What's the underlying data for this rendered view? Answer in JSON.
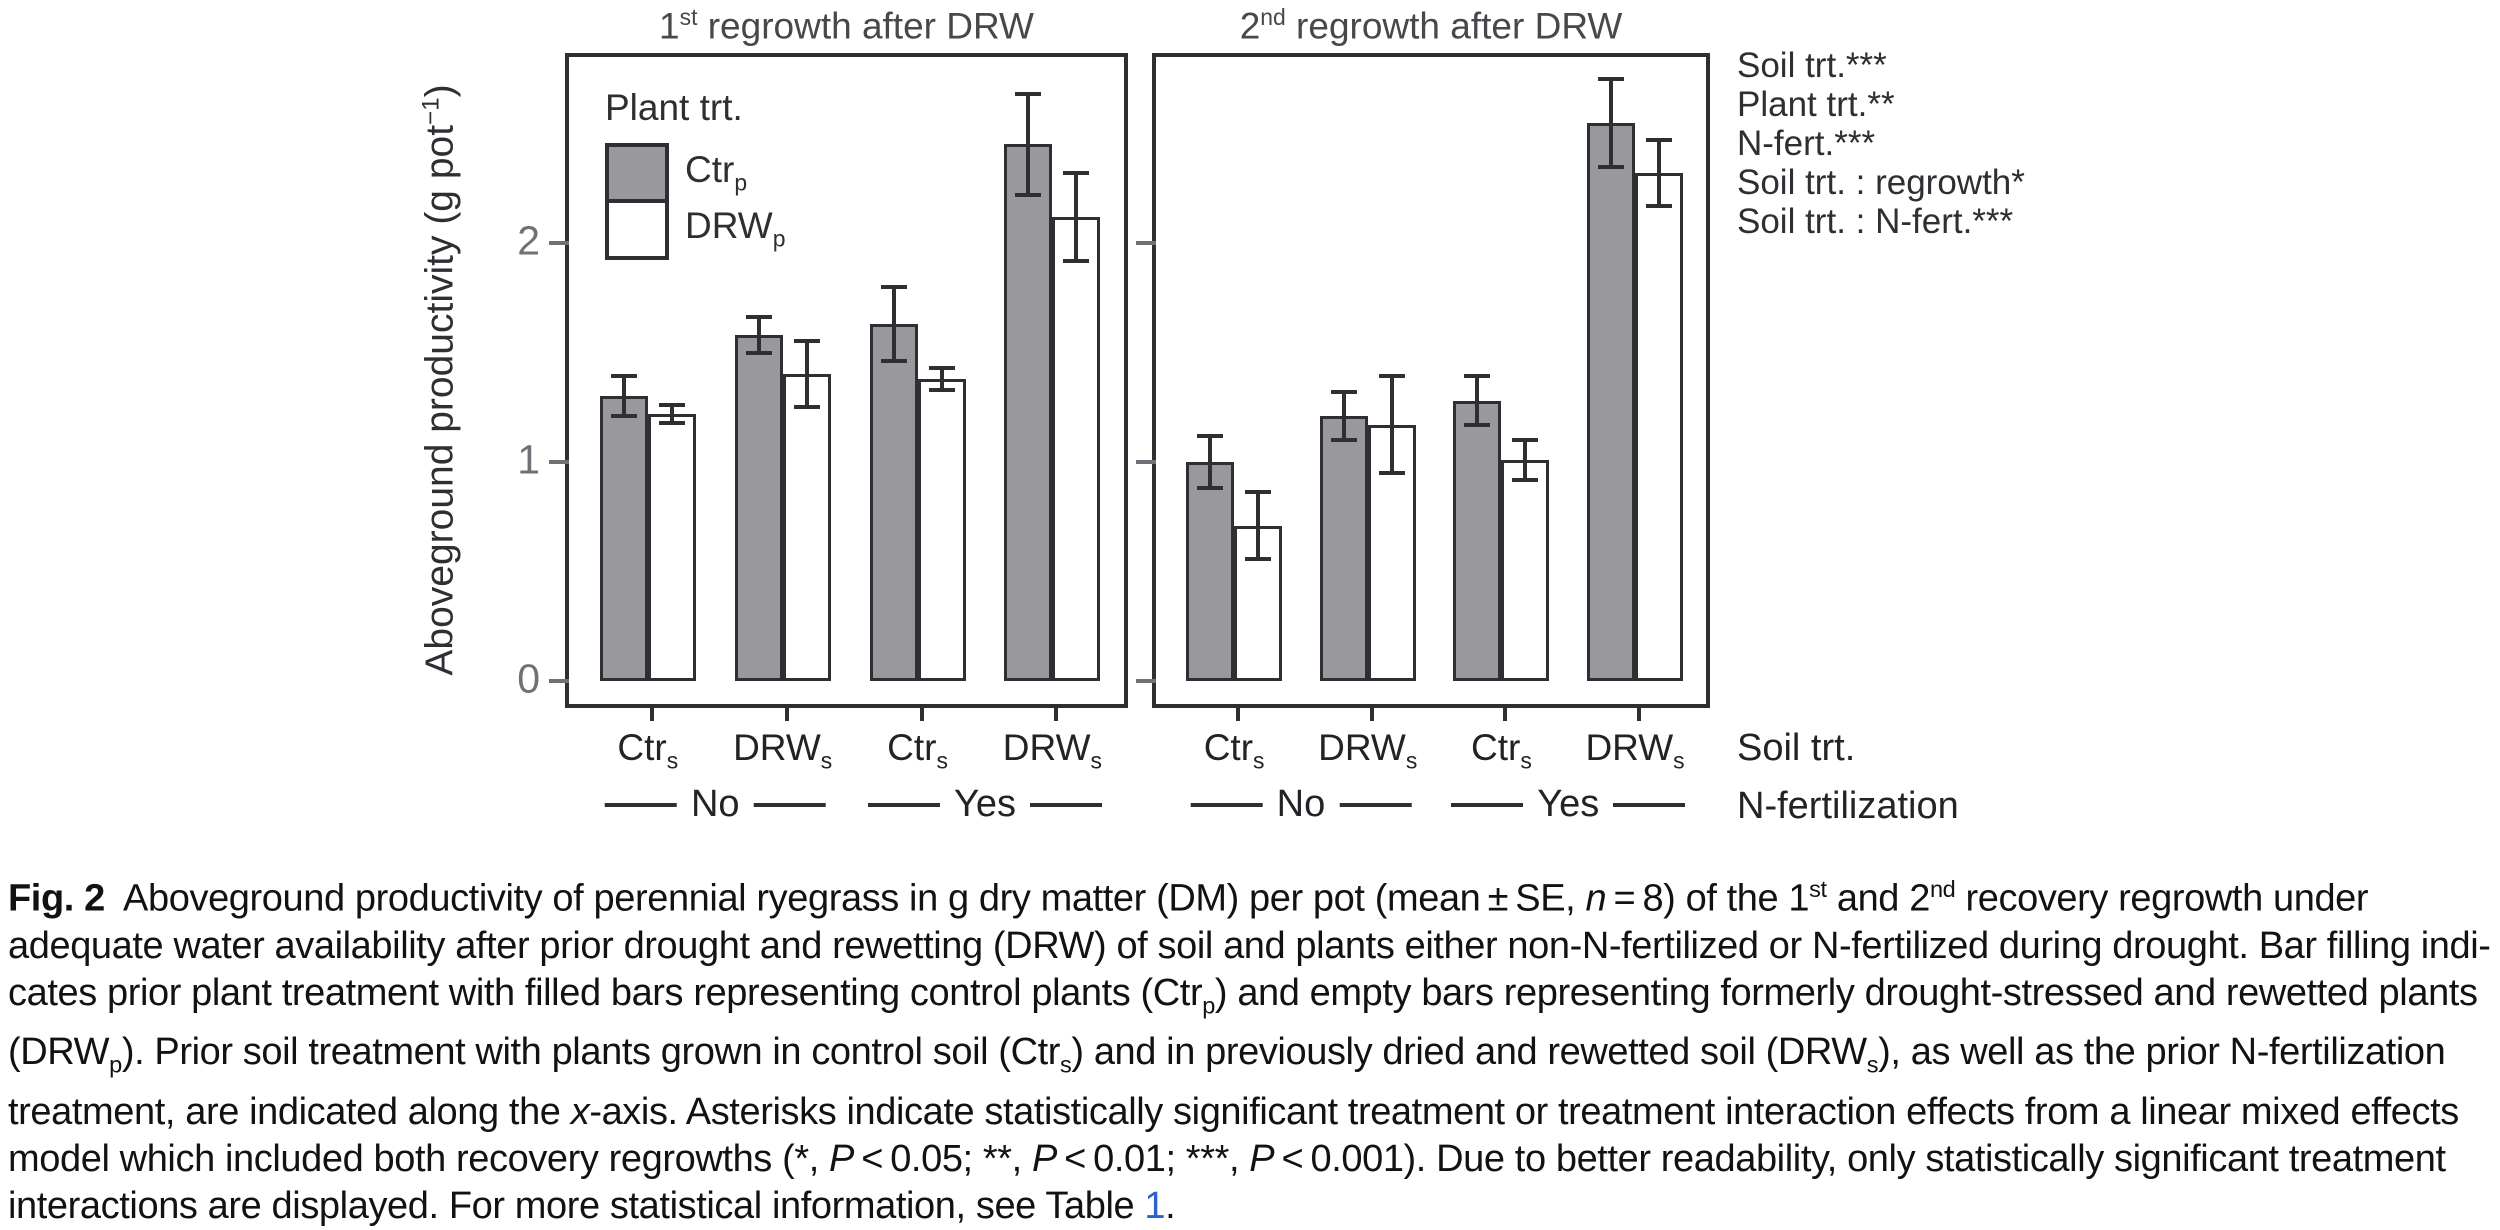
{
  "figure": {
    "y_axis": {
      "label_runs": [
        {
          "text": "Aboveground productivity (g pot"
        },
        {
          "text": "−1",
          "style": "sup"
        },
        {
          "text": ")"
        }
      ]
    },
    "panels": [
      {
        "title_runs": [
          {
            "text": "1"
          },
          {
            "text": "st",
            "style": "sup"
          },
          {
            "text": " regrowth after DRW"
          }
        ]
      },
      {
        "title_runs": [
          {
            "text": "2"
          },
          {
            "text": "nd",
            "style": "sup"
          },
          {
            "text": " regrowth after DRW"
          }
        ]
      }
    ],
    "legend": {
      "title": "Plant trt.",
      "items": [
        {
          "label_runs": [
            {
              "text": "Ctr"
            },
            {
              "text": "p",
              "style": "sub"
            }
          ],
          "fill": "#98989d"
        },
        {
          "label_runs": [
            {
              "text": "DRW"
            },
            {
              "text": "p",
              "style": "sub"
            }
          ],
          "fill": "#ffffff"
        }
      ]
    },
    "annotations": [
      "Soil trt.***",
      "Plant trt.**",
      "N-fert.***",
      "Soil trt. : regrowth*",
      "Soil trt. : N-fert.***"
    ],
    "x_categories": [
      {
        "runs": [
          {
            "text": "Ctr"
          },
          {
            "text": "s",
            "style": "sub"
          }
        ]
      },
      {
        "runs": [
          {
            "text": "DRW"
          },
          {
            "text": "s",
            "style": "sub"
          }
        ]
      },
      {
        "runs": [
          {
            "text": "Ctr"
          },
          {
            "text": "s",
            "style": "sub"
          }
        ]
      },
      {
        "runs": [
          {
            "text": "DRW"
          },
          {
            "text": "s",
            "style": "sub"
          }
        ]
      }
    ],
    "nfert_groups": [
      "No",
      "Yes"
    ],
    "x_rows": {
      "soil": "Soil trt.",
      "nfert": "N-fertilization"
    }
  },
  "colors": {
    "bar_fill_ctrp": "#98989d",
    "bar_fill_drwp": "#ffffff",
    "bar_outline": "#2e2e33",
    "tick_label": "#707076",
    "link": "#2b61c9"
  },
  "chart_data": {
    "type": "bar",
    "ylabel": "Aboveground productivity (g pot^-1)",
    "ylim": [
      0,
      2.9
    ],
    "yticks": [
      0,
      1,
      2
    ],
    "grid": false,
    "error_bars": "SE",
    "legend_title": "Plant trt.",
    "legend_position": "top-left inside first panel",
    "panels": [
      {
        "title": "1st regrowth after DRW",
        "categories": [
          "Ctrs / No N-fert",
          "DRWs / No N-fert",
          "Ctrs / Yes N-fert",
          "DRWs / Yes N-fert"
        ],
        "series": [
          {
            "name": "Ctrp",
            "values": [
              1.3,
              1.58,
              1.63,
              2.45
            ],
            "se": [
              0.1,
              0.09,
              0.18,
              0.24
            ]
          },
          {
            "name": "DRWp",
            "values": [
              1.22,
              1.4,
              1.38,
              2.12
            ],
            "se": [
              0.05,
              0.16,
              0.06,
              0.21
            ]
          }
        ]
      },
      {
        "title": "2nd regrowth after DRW",
        "categories": [
          "Ctrs / No N-fert",
          "DRWs / No N-fert",
          "Ctrs / Yes N-fert",
          "DRWs / Yes N-fert"
        ],
        "series": [
          {
            "name": "Ctrp",
            "values": [
              1.0,
              1.21,
              1.28,
              2.55
            ],
            "se": [
              0.13,
              0.12,
              0.12,
              0.21
            ]
          },
          {
            "name": "DRWp",
            "values": [
              0.71,
              1.17,
              1.01,
              2.32
            ],
            "se": [
              0.16,
              0.23,
              0.1,
              0.16
            ]
          }
        ]
      }
    ]
  },
  "caption": {
    "lines": [
      [
        {
          "text": "Fig. 2",
          "style": "b"
        },
        {
          "text": "  Aboveground productivity of perennial ryegrass in g dry matter (DM) per pot (mean ± SE, "
        },
        {
          "text": "n",
          "style": "i"
        },
        {
          "text": " = 8) of the 1"
        },
        {
          "text": "st",
          "style": "sup"
        },
        {
          "text": " and 2"
        },
        {
          "text": "nd",
          "style": "sup"
        },
        {
          "text": " recovery regrowth under"
        }
      ],
      [
        {
          "text": "adequate water availability after prior drought and rewetting (DRW) of soil and plants either non-N-fertilized or N-fertilized during drought. Bar filling indi-"
        }
      ],
      [
        {
          "text": "cates prior plant treatment with filled bars representing control plants (Ctr"
        },
        {
          "text": "p",
          "style": "sub"
        },
        {
          "text": ") and empty bars representing formerly drought-stressed and rewetted plants"
        }
      ],
      [
        {
          "text": "(DRW"
        },
        {
          "text": "p",
          "style": "sub"
        },
        {
          "text": "). Prior soil treatment with plants grown in control soil (Ctr"
        },
        {
          "text": "s",
          "style": "sub"
        },
        {
          "text": ") and in previously dried and rewetted soil (DRW"
        },
        {
          "text": "s",
          "style": "sub"
        },
        {
          "text": "), as well as the prior N-fertilization"
        }
      ],
      [
        {
          "text": "treatment, are indicated along the "
        },
        {
          "text": "x",
          "style": "i"
        },
        {
          "text": "-axis. Asterisks indicate statistically significant treatment or treatment interaction effects from a linear mixed effects"
        }
      ],
      [
        {
          "text": "model which included both recovery regrowths (*, "
        },
        {
          "text": "P",
          "style": "i"
        },
        {
          "text": " < 0.05; **, "
        },
        {
          "text": "P",
          "style": "i"
        },
        {
          "text": " < 0.01; ***, "
        },
        {
          "text": "P",
          "style": "i"
        },
        {
          "text": " < 0.001). Due to better readability, only statistically significant treatment"
        }
      ],
      [
        {
          "text": "interactions are displayed. For more statistical information, see Table "
        },
        {
          "text": "1",
          "style": "link"
        },
        {
          "text": "."
        }
      ]
    ]
  }
}
